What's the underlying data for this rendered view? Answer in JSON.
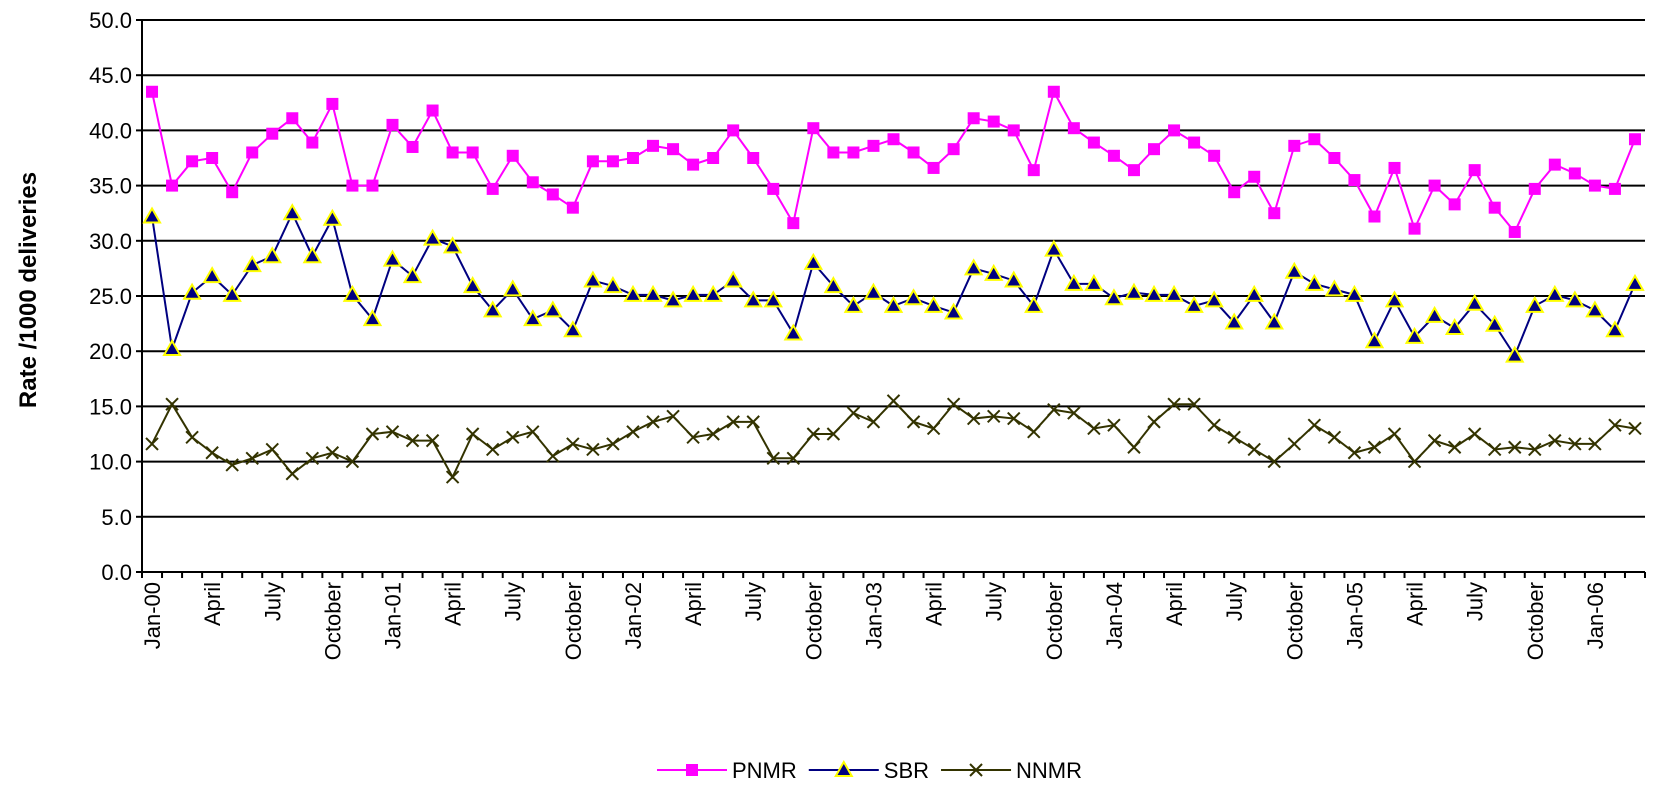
{
  "chart_data": {
    "type": "line",
    "y_label": "Rate /1000 deliveries",
    "categories": [
      "Jan-00",
      null,
      null,
      "April",
      null,
      null,
      "July",
      null,
      null,
      "October",
      null,
      null,
      "Jan-01",
      null,
      null,
      "April",
      null,
      null,
      "July",
      null,
      null,
      "October",
      null,
      null,
      "Jan-02",
      null,
      null,
      "April",
      null,
      null,
      "July",
      null,
      null,
      "October",
      null,
      null,
      "Jan-03",
      null,
      null,
      "April",
      null,
      null,
      "July",
      null,
      null,
      "October",
      null,
      null,
      "Jan-04",
      null,
      null,
      "April",
      null,
      null,
      "July",
      null,
      null,
      "October",
      null,
      null,
      "Jan-05",
      null,
      null,
      "April",
      null,
      null,
      "July",
      null,
      null,
      "October",
      null,
      null,
      "Jan-06",
      null,
      null
    ],
    "series": [
      {
        "name": "PNMR",
        "color": "#ff00ff",
        "marker": "square",
        "values": [
          43.5,
          35.0,
          37.2,
          37.5,
          34.4,
          38.0,
          39.7,
          41.1,
          38.9,
          42.4,
          35.0,
          35.0,
          40.5,
          38.5,
          41.8,
          38.0,
          38.0,
          34.7,
          37.7,
          35.3,
          34.2,
          33.0,
          37.2,
          37.2,
          37.5,
          38.6,
          38.3,
          36.9,
          37.5,
          40.0,
          37.5,
          34.7,
          31.6,
          40.2,
          38.0,
          38.0,
          38.6,
          39.2,
          38.0,
          36.6,
          38.3,
          41.1,
          40.8,
          40.0,
          36.4,
          43.5,
          40.2,
          38.9,
          37.7,
          36.4,
          38.3,
          40.0,
          38.9,
          37.7,
          34.4,
          35.8,
          32.5,
          38.6,
          39.2,
          37.5,
          35.5,
          32.2,
          36.6,
          31.1,
          35.0,
          33.3,
          36.4,
          33.0,
          30.8,
          34.7,
          36.9,
          36.1,
          35.0,
          34.7,
          39.2
        ]
      },
      {
        "name": "SBR",
        "color": "#000080",
        "marker": "triangle",
        "values": [
          32.2,
          20.2,
          25.3,
          26.8,
          25.1,
          27.8,
          28.6,
          32.5,
          28.6,
          32.0,
          25.1,
          22.9,
          28.3,
          26.8,
          30.2,
          29.5,
          25.9,
          23.7,
          25.6,
          22.9,
          23.7,
          21.9,
          26.4,
          25.9,
          25.1,
          25.1,
          24.6,
          25.1,
          25.1,
          26.4,
          24.6,
          24.6,
          21.6,
          28.0,
          25.9,
          24.1,
          25.3,
          24.1,
          24.8,
          24.1,
          23.5,
          27.5,
          27.0,
          26.4,
          24.1,
          29.2,
          26.1,
          26.1,
          24.8,
          25.3,
          25.1,
          25.1,
          24.1,
          24.6,
          22.6,
          25.1,
          22.6,
          27.2,
          26.1,
          25.6,
          25.1,
          20.9,
          24.6,
          21.3,
          23.2,
          22.1,
          24.3,
          22.4,
          19.6,
          24.1,
          25.1,
          24.6,
          23.7,
          21.9,
          26.1
        ]
      },
      {
        "name": "NNMR",
        "color": "#333300",
        "marker": "x",
        "values": [
          11.6,
          15.2,
          12.2,
          10.8,
          9.7,
          10.3,
          11.1,
          8.9,
          10.3,
          10.8,
          10.0,
          12.5,
          12.7,
          11.9,
          11.9,
          8.6,
          12.5,
          11.1,
          12.2,
          12.7,
          10.5,
          11.6,
          11.1,
          11.6,
          12.7,
          13.6,
          14.1,
          12.2,
          12.5,
          13.6,
          13.6,
          10.3,
          10.3,
          12.5,
          12.5,
          14.4,
          13.6,
          15.5,
          13.6,
          13.0,
          15.2,
          13.9,
          14.1,
          13.9,
          12.7,
          14.7,
          14.4,
          13.0,
          13.3,
          11.3,
          13.6,
          15.2,
          15.2,
          13.3,
          12.2,
          11.1,
          10.0,
          11.6,
          13.3,
          12.2,
          10.8,
          11.3,
          12.5,
          10.0,
          11.9,
          11.3,
          12.5,
          11.1,
          11.3,
          11.1,
          11.9,
          11.6,
          11.6,
          13.3,
          13.0
        ]
      }
    ],
    "ylim": [
      0,
      50
    ],
    "yticks": [
      {
        "value": 0,
        "label": "0.0"
      },
      {
        "value": 5,
        "label": "5.0"
      },
      {
        "value": 10,
        "label": "10.0"
      },
      {
        "value": 15,
        "label": "15.0"
      },
      {
        "value": 20,
        "label": "20.0"
      },
      {
        "value": 25,
        "label": "25.0"
      },
      {
        "value": 30,
        "label": "30.0"
      },
      {
        "value": 35,
        "label": "35.0"
      },
      {
        "value": 40,
        "label": "40.0"
      },
      {
        "value": 45,
        "label": "45.0"
      },
      {
        "value": 50,
        "label": "50.0"
      }
    ],
    "grid": true,
    "legend": "bottom"
  }
}
